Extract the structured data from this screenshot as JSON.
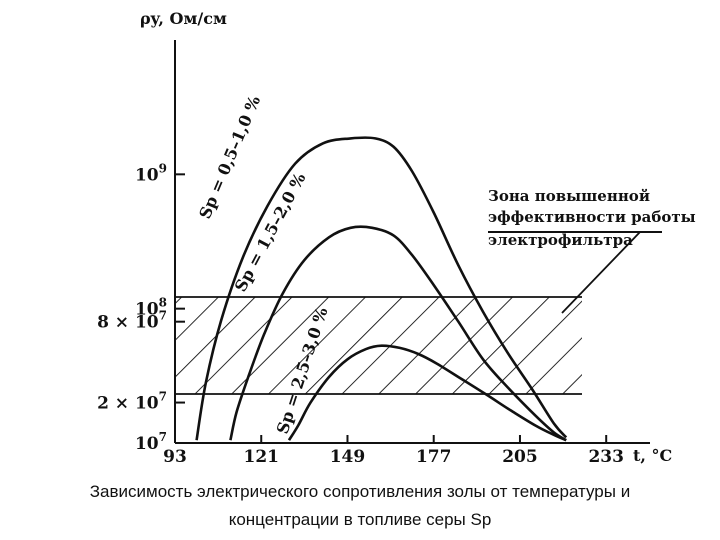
{
  "caption": {
    "line1": "Зависимость электрического сопротивления золы от температуры и",
    "line2": "концентрации в топливе серы Sp"
  },
  "chart_data": {
    "type": "line",
    "xlabel": "t, °C",
    "ylabel": "ρy, Ом/см",
    "xticks": [
      "93",
      "121",
      "149",
      "177",
      "205",
      "233"
    ],
    "xlim": [
      93,
      243
    ],
    "ylim": [
      10000000.0,
      10000000000.0
    ],
    "yscale": "log",
    "yticks": [
      {
        "value": 1000000000.0,
        "label": "10^9"
      },
      {
        "value": 100000000.0,
        "label": "10^8"
      },
      {
        "value": 80000000.0,
        "label": "8 × 10^7"
      },
      {
        "value": 20000000.0,
        "label": "2 × 10^7"
      },
      {
        "value": 10000000.0,
        "label": "10^7"
      }
    ],
    "series": [
      {
        "name": "Sp = 0,5–1,0 %",
        "x": [
          100,
          103,
          108,
          115,
          123,
          132,
          141,
          150,
          158,
          164,
          170,
          177,
          185,
          193,
          201,
          209,
          216,
          220
        ],
        "y": [
          10500000.0,
          28000000.0,
          82000000.0,
          240000000.0,
          580000000.0,
          1200000000.0,
          1700000000.0,
          1850000000.0,
          1850000000.0,
          1600000000.0,
          1050000000.0,
          520000000.0,
          210000000.0,
          95000000.0,
          47000000.0,
          25000000.0,
          14000000.0,
          11000000.0
        ]
      },
      {
        "name": "Sp = 1,5–2,0 %",
        "x": [
          111,
          113,
          117,
          122,
          128,
          135,
          143,
          150,
          157,
          164,
          170,
          177,
          185,
          193,
          201,
          210,
          216,
          220
        ],
        "y": [
          10500000.0,
          17000000.0,
          32000000.0,
          65000000.0,
          130000000.0,
          230000000.0,
          340000000.0,
          400000000.0,
          400000000.0,
          350000000.0,
          250000000.0,
          150000000.0,
          80000000.0,
          42000000.0,
          26000000.0,
          16000000.0,
          12000000.0,
          10500000.0
        ]
      },
      {
        "name": "Sp = 2,5–3,0 %",
        "x": [
          130,
          133,
          137,
          143,
          149,
          155,
          160,
          166,
          172,
          178,
          186,
          194,
          202,
          210,
          216,
          220
        ],
        "y": [
          10500000.0,
          13500000.0,
          20000000.0,
          31000000.0,
          42000000.0,
          50000000.0,
          53000000.0,
          51000000.0,
          46000000.0,
          39000000.0,
          30000000.0,
          23000000.0,
          17500000.0,
          13500000.0,
          11500000.0,
          10500000.0
        ]
      }
    ],
    "shaded_region": {
      "y": [
        20000000.0,
        80000000.0
      ],
      "pattern": "diagonal hatching"
    },
    "annotation": {
      "lines": [
        "Зона повышенной",
        "эффективности работы",
        "электрофильтра"
      ]
    },
    "grid": false,
    "legend": "none",
    "colors": {
      "ink": "#111111",
      "background": "#ffffff"
    }
  }
}
